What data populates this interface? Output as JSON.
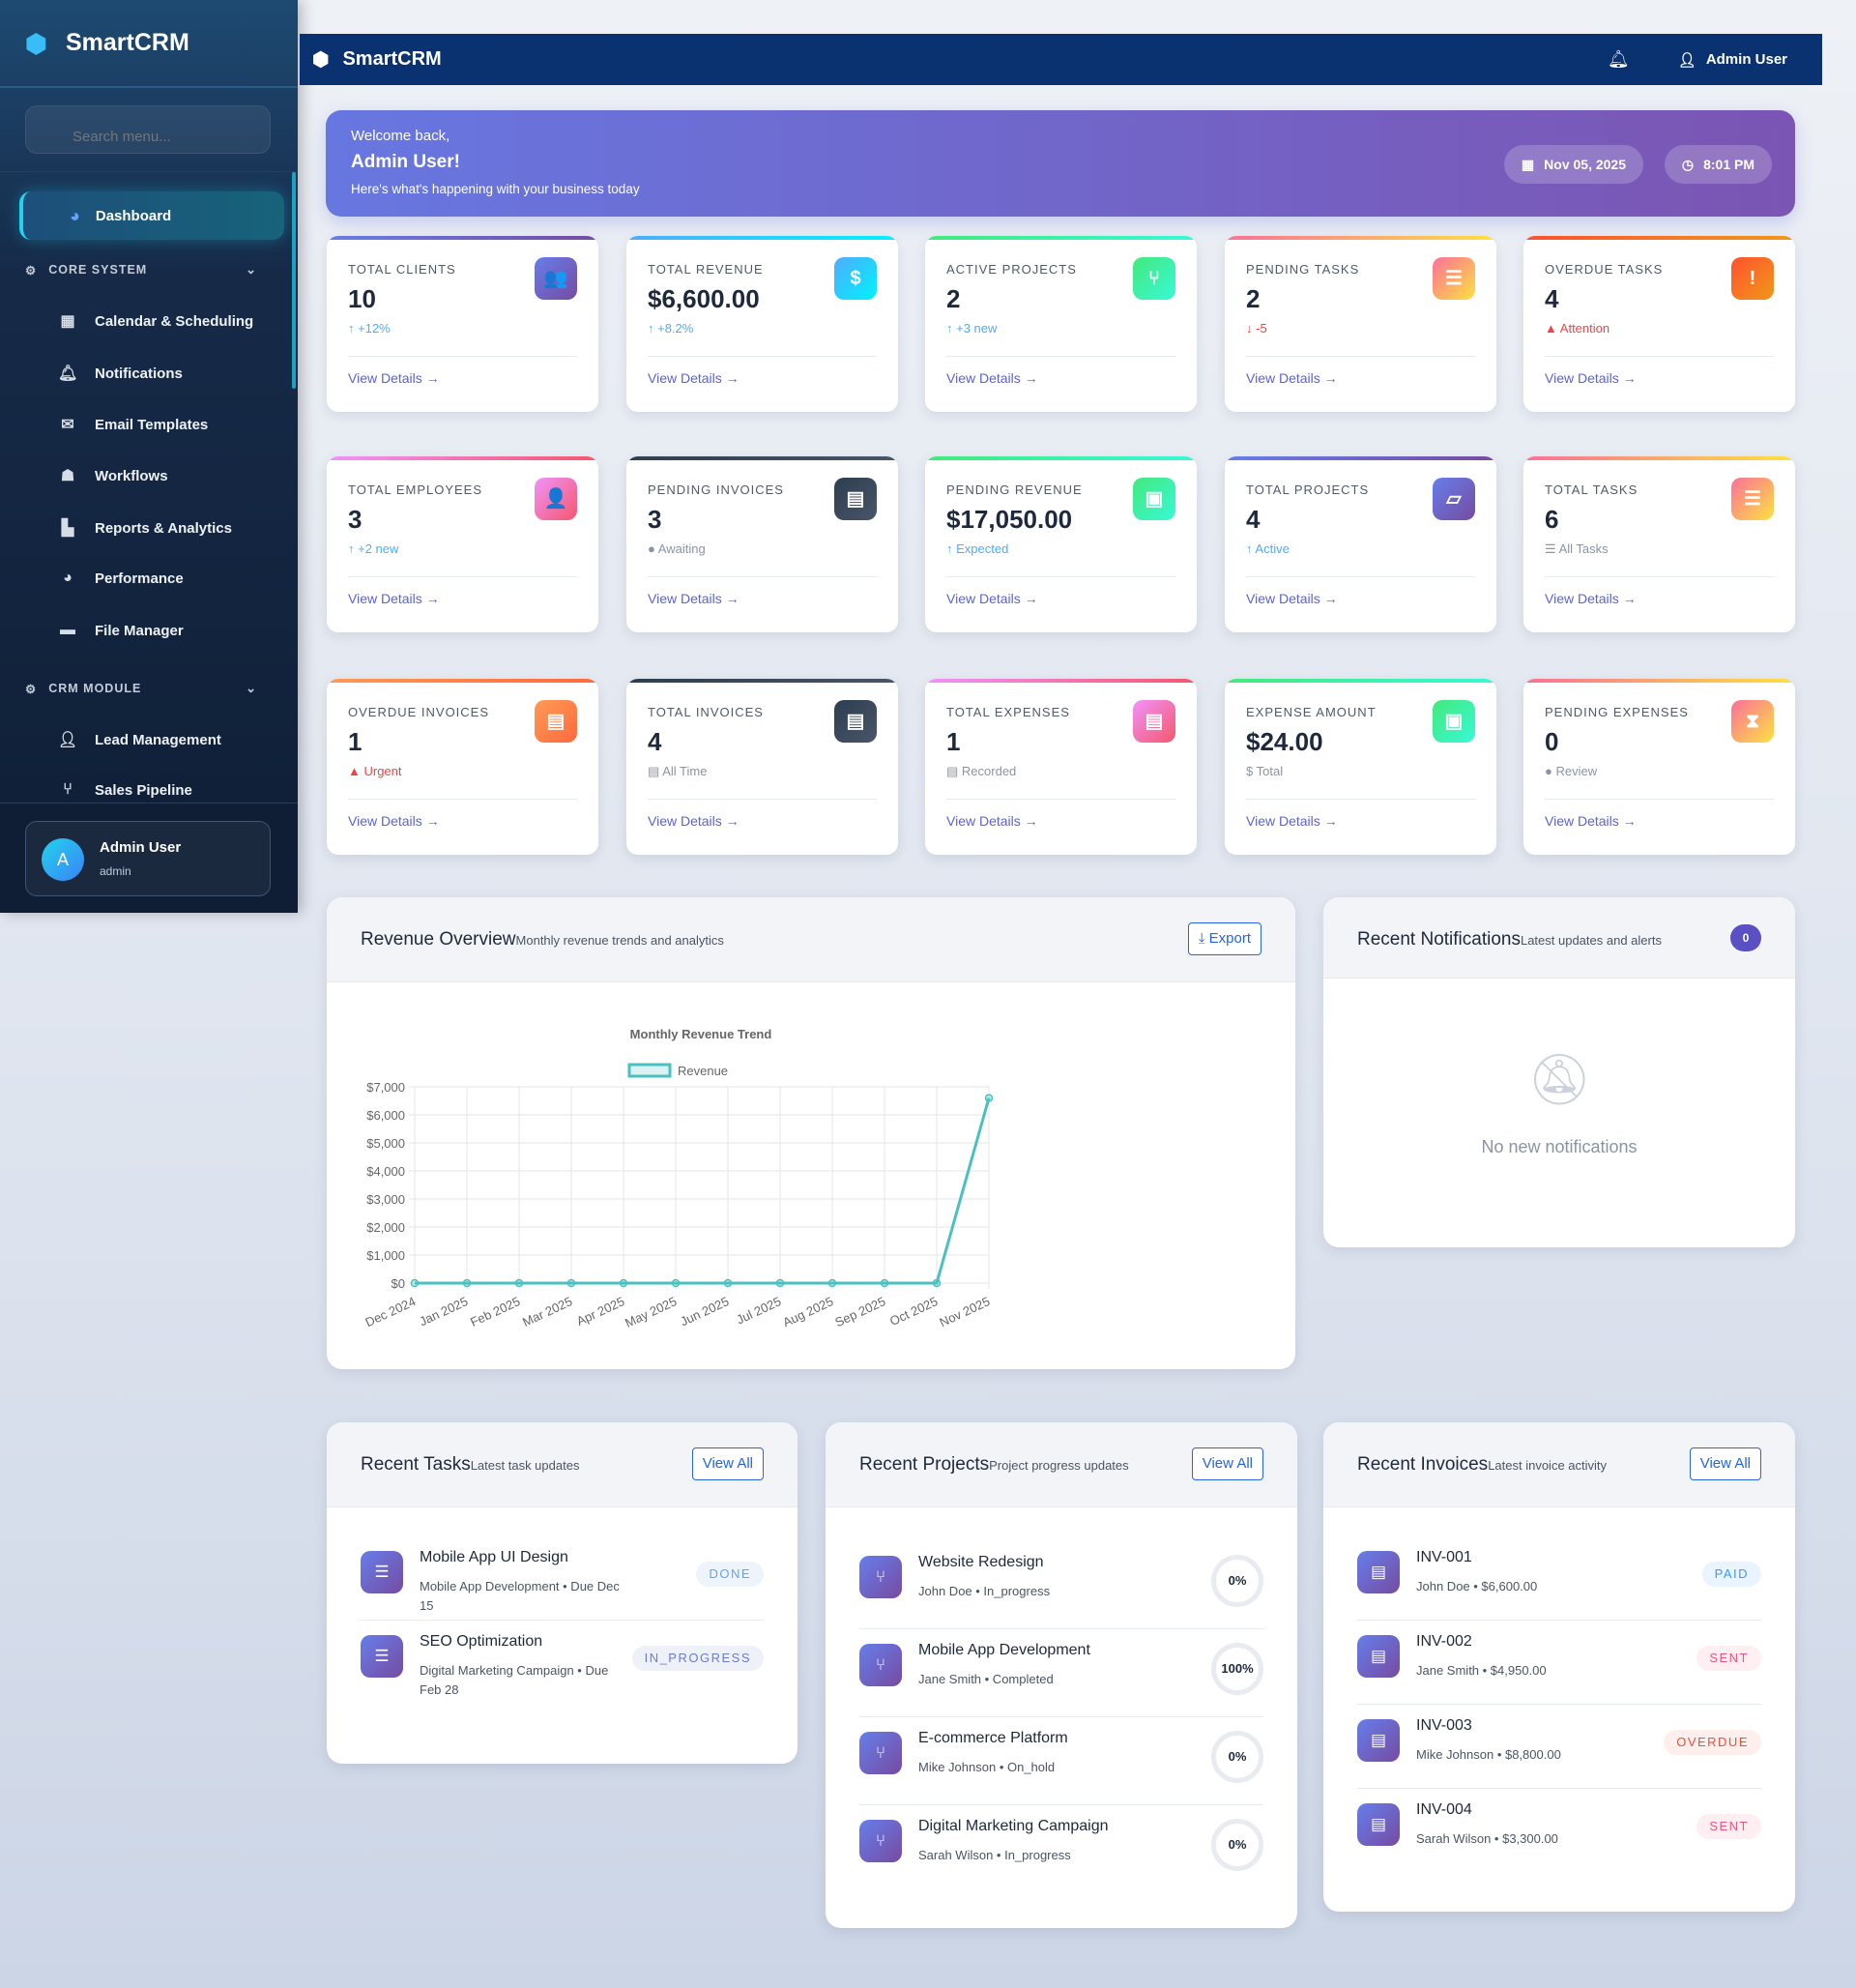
{
  "app": {
    "name": "SmartCRM"
  },
  "sidebar": {
    "search_placeholder": "Search menu...",
    "active": {
      "label": "Dashboard",
      "icon": "gauge-icon"
    },
    "sections": [
      {
        "label": "CORE SYSTEM",
        "icon": "cogs-icon"
      },
      {
        "label": "CRM MODULE",
        "icon": "handshake-icon"
      }
    ],
    "items": [
      {
        "label": "Calendar & Scheduling",
        "icon": "calendar-icon"
      },
      {
        "label": "Notifications",
        "icon": "bell-icon"
      },
      {
        "label": "Email Templates",
        "icon": "envelope-icon"
      },
      {
        "label": "Workflows",
        "icon": "robot-icon"
      },
      {
        "label": "Reports & Analytics",
        "icon": "chart-icon"
      },
      {
        "label": "Performance",
        "icon": "gauge-icon"
      },
      {
        "label": "File Manager",
        "icon": "folder-icon"
      },
      {
        "label": "Lead Management",
        "icon": "user-plus-icon"
      },
      {
        "label": "Sales Pipeline",
        "icon": "sitemap-icon"
      }
    ],
    "user": {
      "initial": "A",
      "name": "Admin User",
      "role": "admin"
    }
  },
  "topbar": {
    "title": "SmartCRM",
    "user": "Admin User"
  },
  "welcome": {
    "greeting": "Welcome back,",
    "name": "Admin User!",
    "subtitle": "Here's what's happening with your business today",
    "date": "Nov 05, 2025",
    "time": "8:01 PM"
  },
  "stats": [
    {
      "label": "TOTAL CLIENTS",
      "value": "10",
      "sub": "+12%",
      "sub_icon": "↑",
      "tone": "up",
      "icon": "👥",
      "icon_name": "users-icon",
      "grad": [
        "#667eea",
        "#764ba2"
      ]
    },
    {
      "label": "TOTAL REVENUE",
      "value": "$6,600.00",
      "sub": "+8.2%",
      "sub_icon": "↑",
      "tone": "up",
      "icon": "$",
      "icon_name": "dollar-icon",
      "grad": [
        "#4facfe",
        "#00f2fe"
      ]
    },
    {
      "label": "ACTIVE PROJECTS",
      "value": "2",
      "sub": "+3 new",
      "sub_icon": "↑",
      "tone": "up",
      "icon": "⑂",
      "icon_name": "project-diagram-icon",
      "grad": [
        "#43e97b",
        "#38f9d7"
      ]
    },
    {
      "label": "PENDING TASKS",
      "value": "2",
      "sub": "-5",
      "sub_icon": "↓",
      "tone": "down",
      "icon": "☰",
      "icon_name": "tasks-icon",
      "grad": [
        "#fa709a",
        "#fee140"
      ]
    },
    {
      "label": "OVERDUE TASKS",
      "value": "4",
      "sub": "Attention",
      "sub_icon": "▲",
      "tone": "down",
      "icon": "!",
      "icon_name": "warning-icon",
      "grad": [
        "#ff512f",
        "#f09819"
      ]
    },
    {
      "label": "TOTAL EMPLOYEES",
      "value": "3",
      "sub": "+2 new",
      "sub_icon": "↑",
      "tone": "up",
      "icon": "👤",
      "icon_name": "user-tie-icon",
      "grad": [
        "#f093fb",
        "#f5576c"
      ]
    },
    {
      "label": "PENDING INVOICES",
      "value": "3",
      "sub": "Awaiting",
      "sub_icon": "●",
      "tone": "muted",
      "icon": "▤",
      "icon_name": "invoice-icon",
      "grad": [
        "#2c3e50",
        "#4a5568"
      ]
    },
    {
      "label": "PENDING REVENUE",
      "value": "$17,050.00",
      "sub": "Expected",
      "sub_icon": "↑",
      "tone": "up",
      "icon": "▣",
      "icon_name": "money-bill-icon",
      "grad": [
        "#43e97b",
        "#38f9d7"
      ]
    },
    {
      "label": "TOTAL PROJECTS",
      "value": "4",
      "sub": "Active",
      "sub_icon": "↑",
      "tone": "up",
      "icon": "▱",
      "icon_name": "folder-open-icon",
      "grad": [
        "#667eea",
        "#764ba2"
      ]
    },
    {
      "label": "TOTAL TASKS",
      "value": "6",
      "sub": "All Tasks",
      "sub_icon": "☰",
      "tone": "muted",
      "icon": "☰",
      "icon_name": "tasks-icon",
      "grad": [
        "#fa709a",
        "#fee140"
      ]
    },
    {
      "label": "OVERDUE INVOICES",
      "value": "1",
      "sub": "Urgent",
      "sub_icon": "▲",
      "tone": "down",
      "icon": "▤",
      "icon_name": "invoice-icon",
      "grad": [
        "#ff9a56",
        "#ff6a3d"
      ]
    },
    {
      "label": "TOTAL INVOICES",
      "value": "4",
      "sub": "All Time",
      "sub_icon": "▤",
      "tone": "muted",
      "icon": "▤",
      "icon_name": "invoice-icon",
      "grad": [
        "#2c3e50",
        "#4a5568"
      ]
    },
    {
      "label": "TOTAL EXPENSES",
      "value": "1",
      "sub": "Recorded",
      "sub_icon": "▤",
      "tone": "muted",
      "icon": "▤",
      "icon_name": "receipt-icon",
      "grad": [
        "#f093fb",
        "#f5576c"
      ]
    },
    {
      "label": "EXPENSE AMOUNT",
      "value": "$24.00",
      "sub": "Total",
      "sub_icon": "$",
      "tone": "muted",
      "icon": "▣",
      "icon_name": "money-bill-icon",
      "grad": [
        "#43e97b",
        "#38f9d7"
      ]
    },
    {
      "label": "PENDING EXPENSES",
      "value": "0",
      "sub": "Review",
      "sub_icon": "●",
      "tone": "muted",
      "icon": "⧗",
      "icon_name": "hourglass-icon",
      "grad": [
        "#fa709a",
        "#fee140"
      ]
    }
  ],
  "view_details": "View Details",
  "colors": {
    "up": "#4facfe",
    "down": "#ef4444",
    "muted": "#8a94a3",
    "link": "#5b63d6",
    "line": "#4bc0c0"
  },
  "revenue": {
    "title": "Revenue Overview",
    "subtitle": "Monthly revenue trends and analytics",
    "export": "Export"
  },
  "chart_data": {
    "type": "line",
    "title": "Monthly Revenue Trend",
    "legend": "top",
    "grid": true,
    "categories": [
      "Dec 2024",
      "Jan 2025",
      "Feb 2025",
      "Mar 2025",
      "Apr 2025",
      "May 2025",
      "Jun 2025",
      "Jul 2025",
      "Aug 2025",
      "Sep 2025",
      "Oct 2025",
      "Nov 2025"
    ],
    "series": [
      {
        "name": "Revenue",
        "values": [
          0,
          0,
          0,
          0,
          0,
          0,
          0,
          0,
          0,
          0,
          0,
          6600
        ]
      }
    ],
    "ylim": [
      0,
      7000
    ],
    "yticks": [
      "$0",
      "$1,000",
      "$2,000",
      "$3,000",
      "$4,000",
      "$5,000",
      "$6,000",
      "$7,000"
    ]
  },
  "notifications": {
    "title": "Recent Notifications",
    "subtitle": "Latest updates and alerts",
    "count": "0",
    "empty": "No new notifications"
  },
  "tasks": {
    "title": "Recent Tasks",
    "subtitle": "Latest task updates",
    "view_all": "View All",
    "items": [
      {
        "title": "Mobile App UI Design",
        "meta": "Mobile App Development • Due Dec 15",
        "status": "DONE"
      },
      {
        "title": "SEO Optimization",
        "meta": "Digital Marketing Campaign • Due Feb 28",
        "status": "IN_PROGRESS"
      }
    ]
  },
  "projects": {
    "title": "Recent Projects",
    "subtitle": "Project progress updates",
    "view_all": "View All",
    "items": [
      {
        "title": "Website Redesign",
        "meta": "John Doe • In_progress",
        "progress": "0%"
      },
      {
        "title": "Mobile App Development",
        "meta": "Jane Smith • Completed",
        "progress": "100%"
      },
      {
        "title": "E-commerce Platform",
        "meta": "Mike Johnson • On_hold",
        "progress": "0%"
      },
      {
        "title": "Digital Marketing Campaign",
        "meta": "Sarah Wilson • In_progress",
        "progress": "0%"
      }
    ]
  },
  "invoices": {
    "title": "Recent Invoices",
    "subtitle": "Latest invoice activity",
    "view_all": "View All",
    "items": [
      {
        "title": "INV-001",
        "meta": "John Doe • $6,600.00",
        "status": "PAID"
      },
      {
        "title": "INV-002",
        "meta": "Jane Smith • $4,950.00",
        "status": "SENT"
      },
      {
        "title": "INV-003",
        "meta": "Mike Johnson • $8,800.00",
        "status": "OVERDUE"
      },
      {
        "title": "INV-004",
        "meta": "Sarah Wilson • $3,300.00",
        "status": "SENT"
      }
    ]
  }
}
